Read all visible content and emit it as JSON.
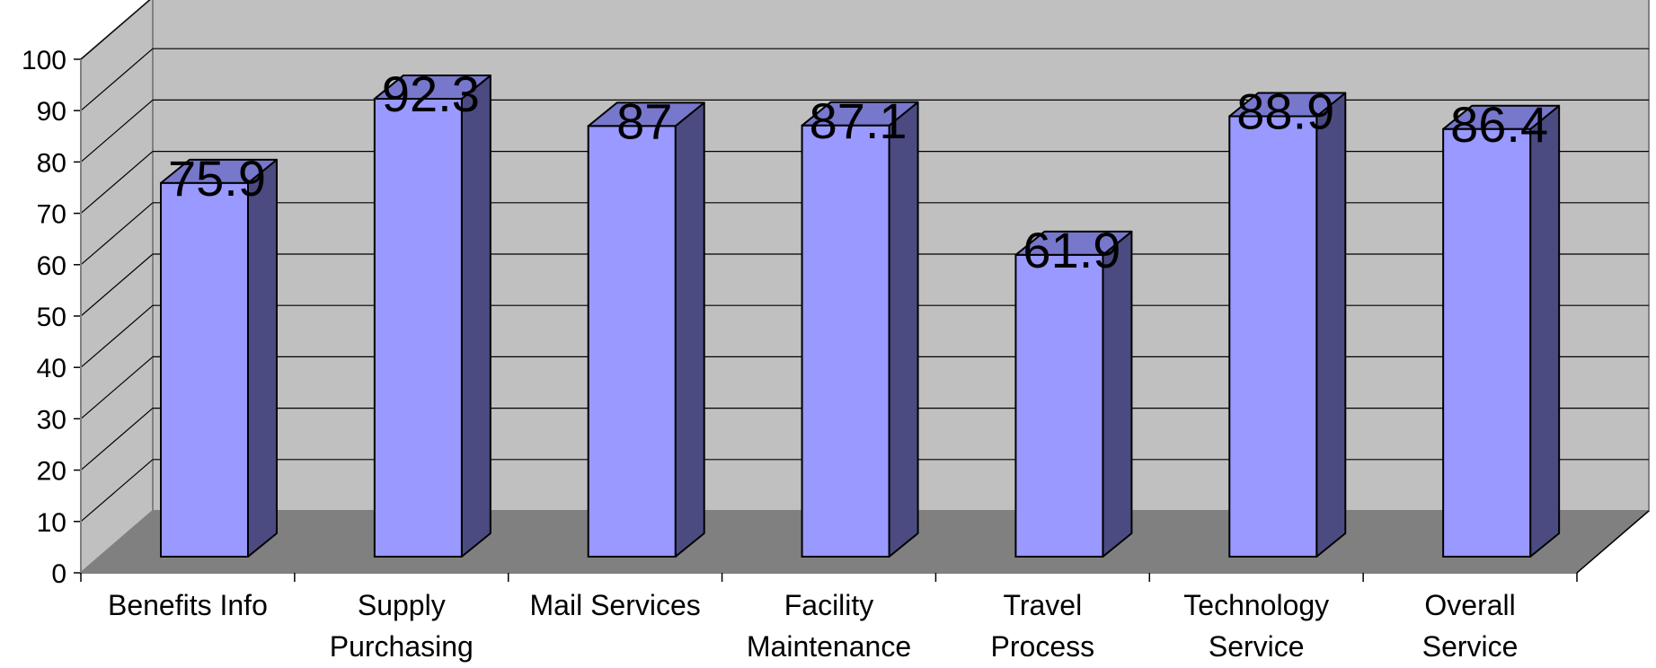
{
  "chart_data": {
    "type": "bar",
    "title": "",
    "xlabel": "",
    "ylabel": "",
    "categories": [
      [
        "Benefits Info"
      ],
      [
        "Supply",
        "Purchasing"
      ],
      [
        "Mail Services"
      ],
      [
        "Facility",
        "Maintenance"
      ],
      [
        "Travel",
        "Process"
      ],
      [
        "Technology",
        "Service"
      ],
      [
        "Overall",
        "Service"
      ]
    ],
    "values": [
      75.9,
      92.3,
      87,
      87.1,
      61.9,
      88.9,
      86.4
    ],
    "data_labels": [
      "75.9",
      "92.3",
      "87",
      "87.1",
      "61.9",
      "88.9",
      "86.4"
    ],
    "ylim": [
      0,
      100
    ],
    "yticks": [
      "0",
      "10",
      "20",
      "30",
      "40",
      "50",
      "60",
      "70",
      "80",
      "90",
      "100"
    ],
    "grid": true,
    "legend": "none",
    "style": "3d-column",
    "colors": {
      "bar_front": "#9999ff",
      "bar_side": "#4b4b82",
      "bar_top": "#7777cc",
      "wall": "#c0c0c0",
      "floor": "#808080",
      "grid": "#000000"
    }
  }
}
